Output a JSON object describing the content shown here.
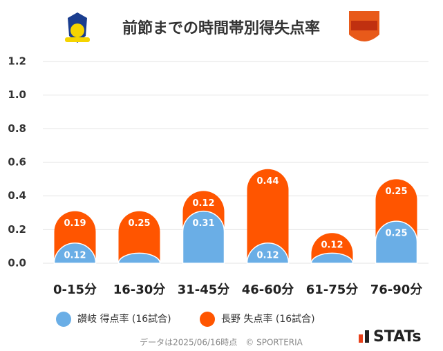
{
  "chart_data": {
    "type": "stacked-bar",
    "title": "前節までの時間帯別得失点率",
    "categories": [
      "0-15分",
      "16-30分",
      "31-45分",
      "46-60分",
      "61-75分",
      "76-90分"
    ],
    "series": [
      {
        "name": "讃岐 得点率 (16試合)",
        "color": "#6aaee6",
        "values": [
          0.12,
          0.06,
          0.31,
          0.12,
          0.06,
          0.25
        ],
        "value_labels": [
          "0.12",
          null,
          "0.31",
          "0.12",
          null,
          "0.25"
        ]
      },
      {
        "name": "長野 失点率 (16試合)",
        "color": "#ff5500",
        "values": [
          0.19,
          0.25,
          0.12,
          0.44,
          0.12,
          0.25
        ],
        "value_labels": [
          "0.19",
          "0.25",
          "0.12",
          "0.44",
          "0.12",
          "0.25"
        ]
      }
    ],
    "ylim": [
      0,
      1.2
    ],
    "yticks": [
      {
        "value": 0,
        "label": "0.0"
      },
      0.2,
      0.4,
      0.6,
      0.8,
      {
        "value": 1,
        "label": "1.0"
      },
      1.2
    ],
    "grid": true,
    "footnote": "データは2025/06/16時点　© SPORTERIA",
    "brand": "STATs"
  }
}
